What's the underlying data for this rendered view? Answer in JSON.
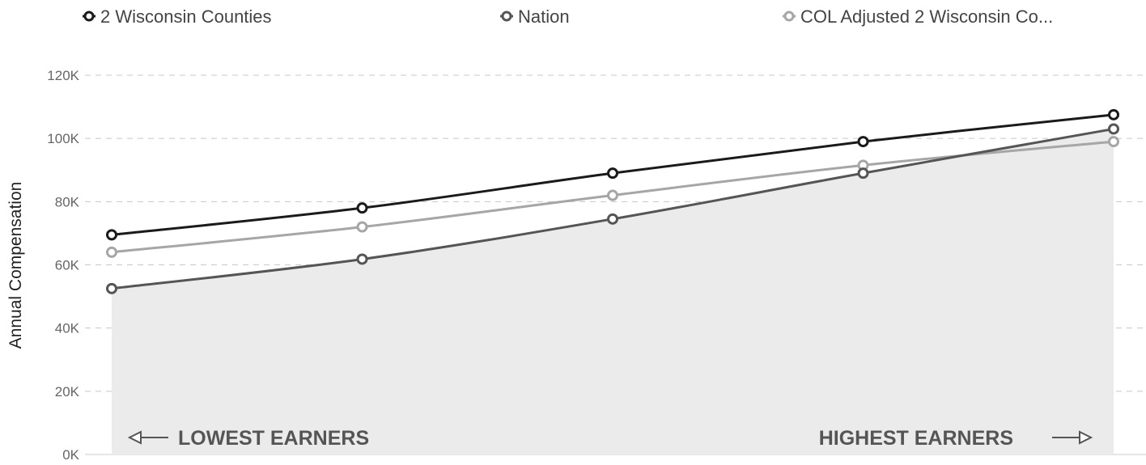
{
  "chart_data": {
    "type": "line",
    "ylabel": "Annual Compensation",
    "ylim": [
      0,
      120000
    ],
    "yticks": [
      {
        "value": 0,
        "label": "0K"
      },
      {
        "value": 20000,
        "label": "20K"
      },
      {
        "value": 40000,
        "label": "40K"
      },
      {
        "value": 60000,
        "label": "60K"
      },
      {
        "value": 80000,
        "label": "80K"
      },
      {
        "value": 100000,
        "label": "100K"
      },
      {
        "value": 120000,
        "label": "120K"
      }
    ],
    "grid": true,
    "legend_position": "top",
    "x_count": 5,
    "area_fill_series": "Nation",
    "series": [
      {
        "name": "2 Wisconsin Counties",
        "color": "#1a1a1a",
        "values": [
          69500,
          78000,
          89000,
          99000,
          107500
        ]
      },
      {
        "name": "Nation",
        "color": "#555555",
        "values": [
          52500,
          61800,
          74500,
          89000,
          103000
        ]
      },
      {
        "name": "COL Adjusted 2 Wisconsin Co...",
        "color": "#a6a6a6",
        "values": [
          64000,
          72000,
          82000,
          91500,
          99000
        ]
      }
    ],
    "annotations": {
      "left": "LOWEST EARNERS",
      "right": "HIGHEST EARNERS"
    }
  }
}
